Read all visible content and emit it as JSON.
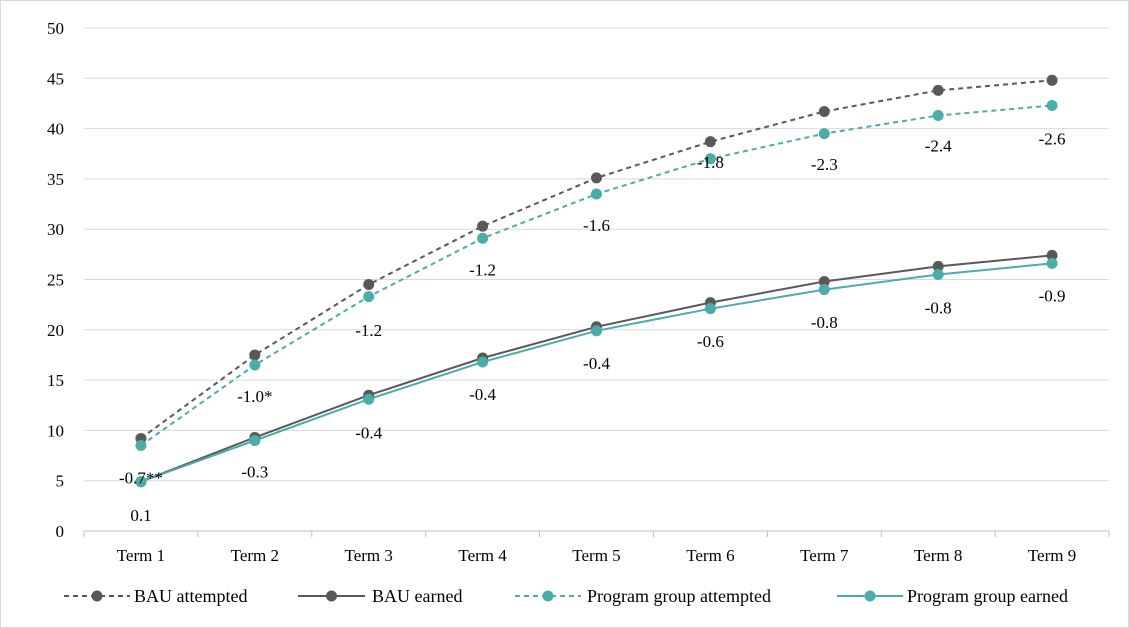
{
  "chart_data": {
    "type": "line",
    "title": "",
    "xlabel": "",
    "ylabel": "",
    "ylim": [
      0,
      50
    ],
    "y_ticks": [
      "0",
      "5",
      "10",
      "15",
      "20",
      "25",
      "30",
      "35",
      "40",
      "45",
      "50"
    ],
    "grid": true,
    "legend_position": "bottom",
    "categories": [
      "Term 1",
      "Term 2",
      "Term 3",
      "Term 4",
      "Term 5",
      "Term 6",
      "Term 7",
      "Term 8",
      "Term 9"
    ],
    "series": [
      {
        "name": "BAU attempted",
        "values": [
          9.2,
          17.5,
          24.5,
          30.3,
          35.1,
          38.7,
          41.7,
          43.8,
          44.8
        ],
        "color": "#595959",
        "dashed": true
      },
      {
        "name": "BAU earned",
        "values": [
          4.9,
          9.3,
          13.5,
          17.2,
          20.3,
          22.7,
          24.8,
          26.3,
          27.4
        ],
        "color": "#595959",
        "dashed": false
      },
      {
        "name": "Program group attempted",
        "values": [
          8.5,
          16.5,
          23.3,
          29.1,
          33.5,
          37.0,
          39.5,
          41.3,
          42.3
        ],
        "color": "#4bacaa",
        "dashed": true
      },
      {
        "name": "Program group earned",
        "values": [
          4.9,
          9.0,
          13.1,
          16.8,
          19.9,
          22.1,
          24.0,
          25.5,
          26.6
        ],
        "color": "#4bacaa",
        "dashed": false
      }
    ],
    "annotations": {
      "attempted_diff": [
        {
          "text": "-0.7**",
          "x": "Term 1",
          "y": 5.3
        },
        {
          "text": "-1.0*",
          "x": "Term 2",
          "y": 13.4
        },
        {
          "text": "-1.2",
          "x": "Term 3",
          "y": 20.0
        },
        {
          "text": "-1.2",
          "x": "Term 4",
          "y": 26.0
        },
        {
          "text": "-1.6",
          "x": "Term 5",
          "y": 30.4
        },
        {
          "text": "-1.8",
          "x": "Term 6",
          "y": 36.7
        },
        {
          "text": "-2.3",
          "x": "Term 7",
          "y": 36.5
        },
        {
          "text": "-2.4",
          "x": "Term 8",
          "y": 38.3
        },
        {
          "text": "-2.6",
          "x": "Term 9",
          "y": 39.0
        }
      ],
      "earned_diff": [
        {
          "text": "0.1",
          "x": "Term 1",
          "y": 1.6
        },
        {
          "text": "-0.3",
          "x": "Term 2",
          "y": 5.9
        },
        {
          "text": "-0.4",
          "x": "Term 3",
          "y": 9.8
        },
        {
          "text": "-0.4",
          "x": "Term 4",
          "y": 13.6
        },
        {
          "text": "-0.4",
          "x": "Term 5",
          "y": 16.7
        },
        {
          "text": "-0.6",
          "x": "Term 6",
          "y": 18.9
        },
        {
          "text": "-0.8",
          "x": "Term 7",
          "y": 20.8
        },
        {
          "text": "-0.8",
          "x": "Term 8",
          "y": 22.2
        },
        {
          "text": "-0.9",
          "x": "Term 9",
          "y": 23.4
        }
      ]
    }
  }
}
